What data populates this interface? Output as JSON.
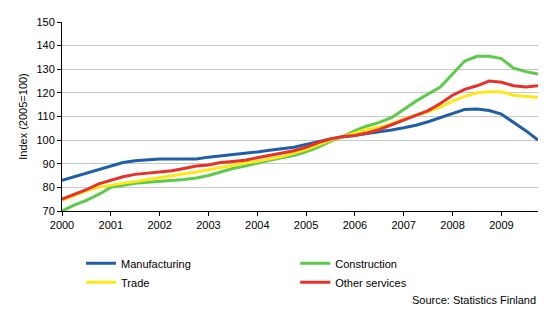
{
  "chart_data": {
    "type": "line",
    "y_label": "Index (2005=100)",
    "annotations": [
      {
        "text": "Source: Statistics Finland"
      }
    ],
    "x": [
      2000,
      2000.25,
      2000.5,
      2000.75,
      2001,
      2001.25,
      2001.5,
      2001.75,
      2002,
      2002.25,
      2002.5,
      2002.75,
      2003,
      2003.25,
      2003.5,
      2003.75,
      2004,
      2004.25,
      2004.5,
      2004.75,
      2005,
      2005.25,
      2005.5,
      2005.75,
      2006,
      2006.25,
      2006.5,
      2006.75,
      2007,
      2007.25,
      2007.5,
      2007.75,
      2008,
      2008.25,
      2008.5,
      2008.75,
      2009,
      2009.25,
      2009.5,
      2009.75
    ],
    "series": [
      {
        "name": "Manufacturing",
        "color": "#1f5fa8",
        "values": [
          83,
          84.5,
          86,
          87.5,
          89,
          90.5,
          91.3,
          91.7,
          92,
          92,
          92,
          92,
          92.8,
          93.3,
          93.8,
          94.2,
          95,
          95.7,
          96.3,
          97,
          98.2,
          99.5,
          100.5,
          101.3,
          102,
          102.7,
          103.5,
          104.3,
          105.2,
          106.3,
          107.8,
          109.5,
          111.5,
          113,
          113.2,
          112.5,
          111,
          107.5,
          104,
          100
        ]
      },
      {
        "name": "Construction",
        "color": "#5ccb4a",
        "values": [
          70,
          72.5,
          74.5,
          77,
          80,
          81,
          81.7,
          82.2,
          82.5,
          82.8,
          83.3,
          84,
          85,
          86.5,
          88,
          89,
          90.3,
          91.5,
          92.5,
          93.5,
          95,
          97,
          99.5,
          101.5,
          104,
          106,
          107.5,
          109.5,
          113,
          116.5,
          119.5,
          122.5,
          128,
          133.5,
          135.5,
          135.5,
          134.5,
          130.5,
          129,
          128
        ]
      },
      {
        "name": "Trade",
        "color": "#ffe81a",
        "values": [
          74.5,
          76.5,
          78.5,
          80,
          81,
          81.8,
          82.5,
          83.3,
          84,
          85,
          85.5,
          86.5,
          87.5,
          88.5,
          89.5,
          90.3,
          91,
          92,
          93,
          94.5,
          96,
          98,
          100,
          101.5,
          103,
          104.5,
          105.5,
          107,
          109,
          110.5,
          112,
          114,
          116.5,
          118.5,
          120,
          120.5,
          120.5,
          119,
          118.5,
          118
        ]
      },
      {
        "name": "Other services",
        "color": "#e6322a",
        "values": [
          75,
          77,
          79,
          81.5,
          83,
          84.5,
          85.5,
          86,
          86.5,
          87,
          88,
          89,
          89.5,
          90.5,
          91,
          91.5,
          92.5,
          93.5,
          94.5,
          95.5,
          97,
          99,
          100.5,
          101.5,
          102,
          103,
          104.5,
          106.5,
          108.5,
          110.5,
          112.5,
          115.5,
          119,
          121.5,
          123,
          125,
          124.5,
          123,
          122.5,
          123
        ]
      }
    ],
    "xlim": [
      2000,
      2009.75
    ],
    "xticks": [
      2000,
      2001,
      2002,
      2003,
      2004,
      2005,
      2006,
      2007,
      2008,
      2009
    ],
    "ylim": [
      70,
      150
    ],
    "yticks": [
      70,
      80,
      90,
      100,
      110,
      120,
      130,
      140,
      150
    ],
    "grid": true,
    "legend": "bottom"
  }
}
